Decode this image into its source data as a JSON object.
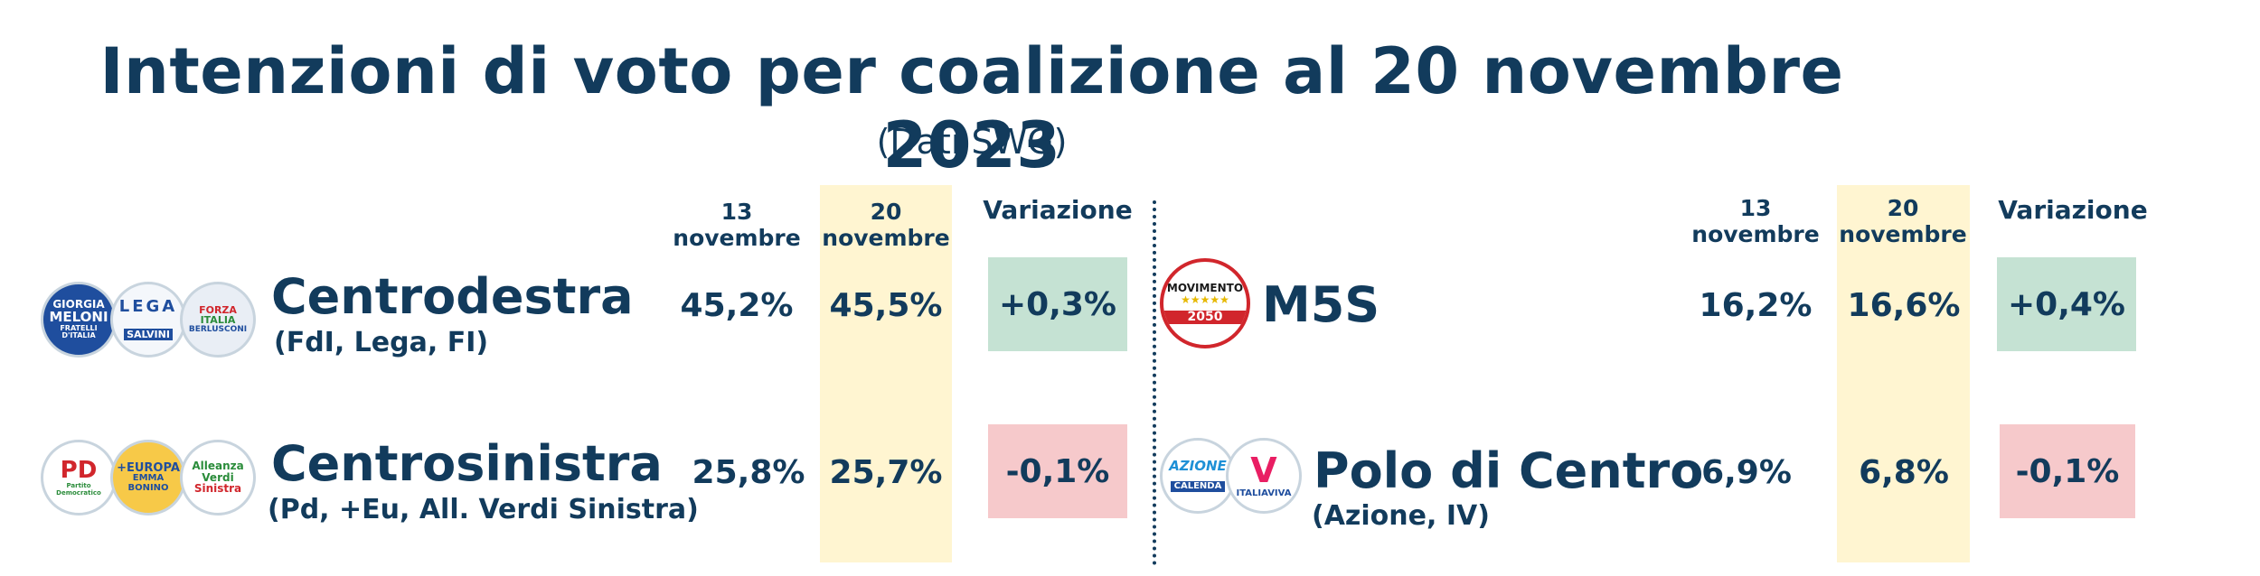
{
  "title": "Intenzioni di voto per coalizione al 20 novembre 2023",
  "subtitle": "(Dati SWG)",
  "colors": {
    "text": "#123b5c",
    "highlight": "#fff5d1",
    "positive": "#c5e2d3",
    "negative": "#f6c9cb"
  },
  "chart_data": {
    "type": "table",
    "title": "Intenzioni di voto per coalizione al 20 novembre 2023",
    "subtitle": "(Dati SWG)",
    "columns": [
      "13 novembre",
      "20 novembre",
      "Variazione"
    ],
    "rows": [
      {
        "name": "Centrodestra",
        "detail": "(FdI, Lega, FI)",
        "values": [
          "45,2%",
          "45,5%",
          "+0,3%"
        ],
        "logos": [
          {
            "icon": "meloni-logo",
            "lines": [
              "GIORGIA",
              "MELONI",
              "FRATELLI",
              "D'ITALIA"
            ]
          },
          {
            "icon": "lega-logo",
            "lines": [
              "LEGA",
              "SALVINI"
            ]
          },
          {
            "icon": "forza-italia-logo",
            "lines": [
              "FORZA",
              "ITALIA",
              "BERLUSCONI"
            ]
          }
        ]
      },
      {
        "name": "Centrosinistra",
        "detail": "(Pd, +Eu, All. Verdi Sinistra)",
        "values": [
          "25,8%",
          "25,7%",
          "-0,1%"
        ],
        "logos": [
          {
            "icon": "pd-logo",
            "lines": [
              "PD",
              "Partito Democratico"
            ]
          },
          {
            "icon": "piu-europa-logo",
            "lines": [
              "+EUROPA",
              "EMMA",
              "BONINO"
            ]
          },
          {
            "icon": "avs-logo",
            "lines": [
              "Alleanza",
              "Verdi",
              "Sinistra"
            ]
          }
        ]
      },
      {
        "name": "M5S",
        "detail": "",
        "values": [
          "16,2%",
          "16,6%",
          "+0,4%"
        ],
        "logos": [
          {
            "icon": "m5s-logo",
            "lines": [
              "MOVIMENTO",
              "★★★★★",
              "2050"
            ]
          }
        ]
      },
      {
        "name": "Polo di Centro",
        "detail": "(Azione, IV)",
        "values": [
          "6,9%",
          "6,8%",
          "-0,1%"
        ],
        "logos": [
          {
            "icon": "azione-logo",
            "lines": [
              "AZIONE",
              "CALENDA"
            ]
          },
          {
            "icon": "italia-viva-logo",
            "lines": [
              "V",
              "ITALIAVIVA"
            ]
          }
        ]
      }
    ]
  }
}
